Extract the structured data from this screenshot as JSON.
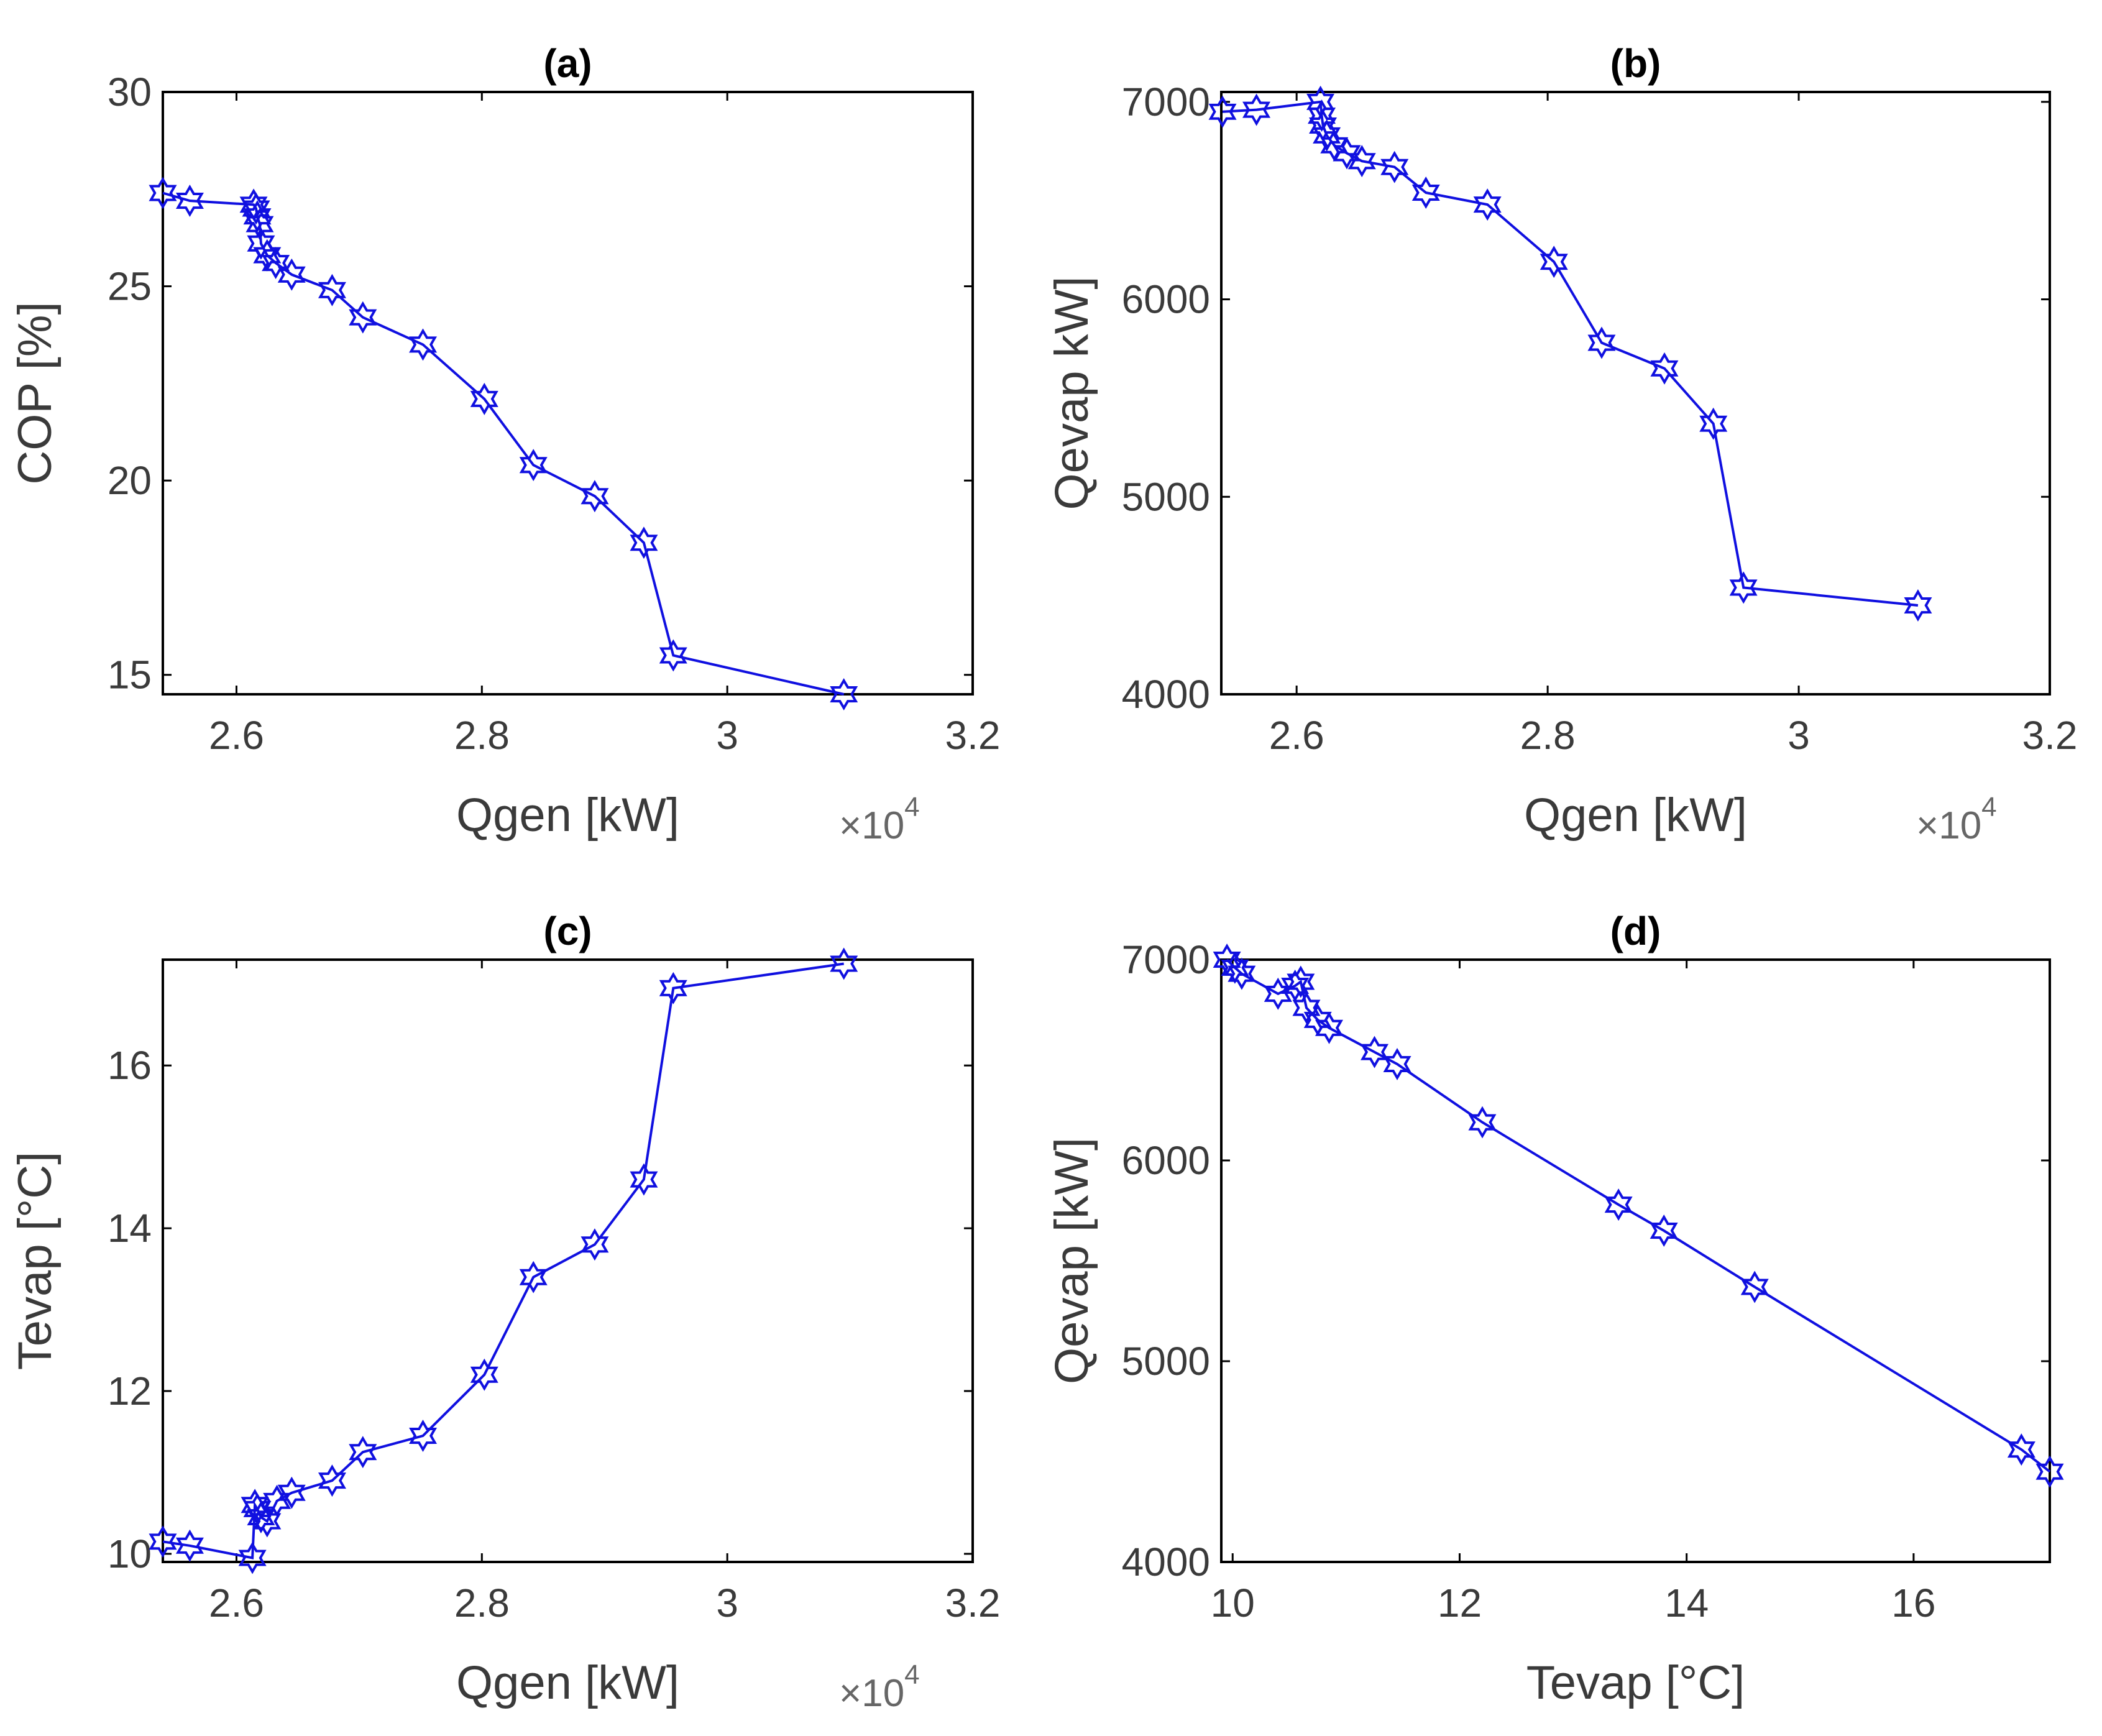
{
  "figure": {
    "line_color": "#1010e0",
    "axis_color": "#000000",
    "text_color": "#3a3a3a",
    "marker": "hexagram"
  },
  "chart_data": [
    {
      "id": "a",
      "type": "line",
      "title": "(a)",
      "xlabel": "Qgen [kW]",
      "ylabel": "COP [%]",
      "x_multiplier": "×10",
      "x_multiplier_exp": "4",
      "xlim": [
        2.54,
        3.2
      ],
      "ylim": [
        14.5,
        30
      ],
      "xticks": [
        2.6,
        2.8,
        3,
        3.2
      ],
      "xtick_labels": [
        "2.6",
        "2.8",
        "3",
        "3.2"
      ],
      "yticks": [
        15,
        20,
        25,
        30
      ],
      "ytick_labels": [
        "15",
        "20",
        "25",
        "30"
      ],
      "x": [
        2.54,
        2.562,
        2.614,
        2.616,
        2.617,
        2.619,
        2.62,
        2.625,
        2.632,
        2.645,
        2.678,
        2.703,
        2.752,
        2.802,
        2.842,
        2.892,
        2.932,
        2.956,
        3.095
      ],
      "y": [
        27.4,
        27.2,
        27.1,
        27.0,
        26.8,
        26.6,
        26.1,
        25.8,
        25.6,
        25.3,
        24.9,
        24.2,
        23.5,
        22.1,
        20.4,
        19.6,
        18.4,
        15.5,
        14.5
      ]
    },
    {
      "id": "b",
      "type": "line",
      "title": "(b)",
      "xlabel": "Qgen [kW]",
      "ylabel": "Qevap kW]",
      "x_multiplier": "×10",
      "x_multiplier_exp": "4",
      "xlim": [
        2.54,
        3.2
      ],
      "ylim": [
        4000,
        7050
      ],
      "xticks": [
        2.6,
        2.8,
        3,
        3.2
      ],
      "xtick_labels": [
        "2.6",
        "2.8",
        "3",
        "3.2"
      ],
      "yticks": [
        4000,
        5000,
        6000,
        7000
      ],
      "ytick_labels": [
        "4000",
        "5000",
        "6000",
        "7000"
      ],
      "x": [
        2.541,
        2.568,
        2.619,
        2.62,
        2.621,
        2.624,
        2.63,
        2.64,
        2.652,
        2.678,
        2.703,
        2.752,
        2.805,
        2.843,
        2.893,
        2.932,
        2.956,
        3.095
      ],
      "y": [
        6950,
        6960,
        7000,
        6930,
        6880,
        6830,
        6780,
        6740,
        6700,
        6670,
        6540,
        6480,
        6190,
        5780,
        5650,
        5370,
        4540,
        4450
      ]
    },
    {
      "id": "c",
      "type": "line",
      "title": "(c)",
      "xlabel": "Qgen [kW]",
      "ylabel": "Tevap [°C]",
      "x_multiplier": "×10",
      "x_multiplier_exp": "4",
      "xlim": [
        2.54,
        3.2
      ],
      "ylim": [
        9.9,
        17.3
      ],
      "xticks": [
        2.6,
        2.8,
        3,
        3.2
      ],
      "xtick_labels": [
        "2.6",
        "2.8",
        "3",
        "3.2"
      ],
      "yticks": [
        10,
        12,
        14,
        16
      ],
      "ytick_labels": [
        "10",
        "12",
        "14",
        "16"
      ],
      "x": [
        2.54,
        2.562,
        2.613,
        2.615,
        2.617,
        2.62,
        2.625,
        2.633,
        2.645,
        2.678,
        2.703,
        2.752,
        2.802,
        2.842,
        2.892,
        2.932,
        2.956,
        3.095
      ],
      "y": [
        10.15,
        10.1,
        9.95,
        10.6,
        10.55,
        10.45,
        10.4,
        10.65,
        10.75,
        10.9,
        11.25,
        11.45,
        12.2,
        13.4,
        13.8,
        14.6,
        16.95,
        17.25
      ]
    },
    {
      "id": "d",
      "type": "line",
      "title": "(d)",
      "xlabel": "Tevap [°C]",
      "ylabel": "Qevap [kW]",
      "x_multiplier": "",
      "x_multiplier_exp": "",
      "xlim": [
        9.9,
        17.2
      ],
      "ylim": [
        4000,
        7000
      ],
      "xticks": [
        10,
        12,
        14,
        16
      ],
      "xtick_labels": [
        "10",
        "12",
        "14",
        "16"
      ],
      "yticks": [
        4000,
        5000,
        6000,
        7000
      ],
      "ytick_labels": [
        "4000",
        "5000",
        "6000",
        "7000"
      ],
      "x": [
        9.95,
        10.02,
        10.08,
        10.4,
        10.55,
        10.6,
        10.65,
        10.75,
        10.85,
        11.25,
        11.45,
        12.2,
        13.4,
        13.8,
        14.6,
        16.95,
        17.2
      ],
      "y": [
        7000,
        6960,
        6930,
        6830,
        6870,
        6890,
        6760,
        6700,
        6660,
        6540,
        6480,
        6190,
        5780,
        5650,
        5370,
        4560,
        4450
      ]
    }
  ]
}
